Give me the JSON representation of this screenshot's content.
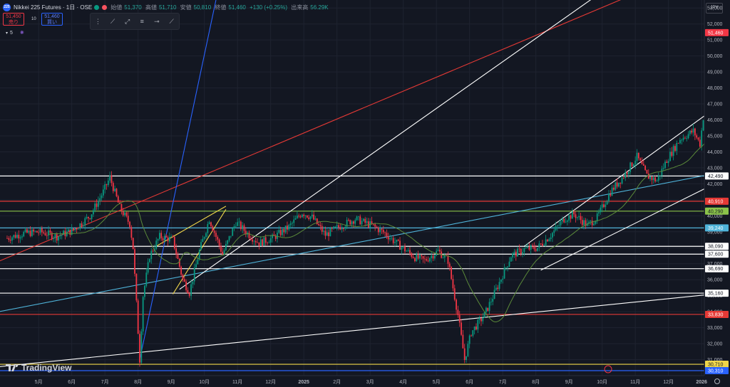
{
  "header": {
    "badge": "225",
    "symbol": "Nikkei 225 Futures · 1日 · OSE",
    "ohlc": [
      {
        "label": "始値",
        "value": "51,370"
      },
      {
        "label": "高値",
        "value": "51,710"
      },
      {
        "label": "安値",
        "value": "50,810"
      },
      {
        "label": "終値",
        "value": "51,460"
      }
    ],
    "change": "+130 (+0.25%)",
    "volume_label": "出来高",
    "volume_value": "56.29K"
  },
  "order_buttons": {
    "sell_price": "51,450",
    "sell_label": "売り",
    "spread": "10",
    "buy_price": "51,460",
    "buy_label": "買い"
  },
  "indicator_count": "5",
  "currency": "JPY",
  "brand": "TradingView",
  "colors": {
    "background": "#131722",
    "up": "#089981",
    "down": "#f23645",
    "ma": "#5b8a3a",
    "white_line": "#ffffff",
    "red_line": "#e53935",
    "blue_line": "#2962ff",
    "cyan_line": "#4fb3d9",
    "yellow_line": "#f0d64a",
    "green_level": "#8bc34a"
  },
  "chart_data": {
    "type": "candlestick",
    "title": "Nikkei 225 Futures · 1日 · OSE",
    "x_ticks": [
      "5月",
      "6月",
      "7月",
      "8月",
      "9月",
      "10月",
      "11月",
      "12月",
      "2025",
      "2月",
      "3月",
      "4月",
      "5月",
      "6月",
      "7月",
      "8月",
      "9月",
      "10月",
      "11月",
      "12月",
      "2026"
    ],
    "y_ticks": [
      31000,
      32000,
      33000,
      34000,
      35000,
      36000,
      37000,
      38000,
      39000,
      40000,
      41000,
      42000,
      43000,
      44000,
      45000,
      46000,
      47000,
      48000,
      49000,
      50000,
      51000,
      52000,
      53000
    ],
    "ylim": [
      30000,
      53500
    ],
    "last_price": 51460,
    "price_path": [
      [
        0,
        38600
      ],
      [
        0.5,
        38900
      ],
      [
        1,
        39000
      ],
      [
        1.5,
        38700
      ],
      [
        2,
        39100
      ],
      [
        2.5,
        40000
      ],
      [
        2.9,
        41500
      ],
      [
        3.1,
        42400
      ],
      [
        3.4,
        40500
      ],
      [
        3.7,
        39500
      ],
      [
        3.8,
        38000
      ],
      [
        4.0,
        31000
      ],
      [
        4.1,
        35000
      ],
      [
        4.3,
        37500
      ],
      [
        4.6,
        38700
      ],
      [
        5.0,
        38500
      ],
      [
        5.3,
        36000
      ],
      [
        5.5,
        35200
      ],
      [
        5.8,
        37800
      ],
      [
        6.1,
        39800
      ],
      [
        6.5,
        37600
      ],
      [
        6.9,
        39600
      ],
      [
        7.3,
        38800
      ],
      [
        7.6,
        38300
      ],
      [
        8.0,
        38600
      ],
      [
        8.5,
        39300
      ],
      [
        8.9,
        40200
      ],
      [
        9.2,
        39900
      ],
      [
        9.6,
        38800
      ],
      [
        10.0,
        39300
      ],
      [
        10.5,
        39800
      ],
      [
        11.0,
        39400
      ],
      [
        11.4,
        38900
      ],
      [
        11.8,
        38200
      ],
      [
        12.3,
        37400
      ],
      [
        12.6,
        37200
      ],
      [
        13.0,
        37800
      ],
      [
        13.3,
        37200
      ],
      [
        13.6,
        33800
      ],
      [
        13.8,
        31000
      ],
      [
        14.0,
        32700
      ],
      [
        14.4,
        33800
      ],
      [
        14.8,
        35600
      ],
      [
        15.2,
        37500
      ],
      [
        15.6,
        37900
      ],
      [
        16.0,
        38000
      ],
      [
        16.4,
        38800
      ],
      [
        16.8,
        39800
      ],
      [
        17.1,
        40100
      ],
      [
        17.5,
        39400
      ],
      [
        17.8,
        39900
      ],
      [
        18.2,
        41500
      ],
      [
        18.6,
        42500
      ],
      [
        19.0,
        43700
      ],
      [
        19.3,
        42500
      ],
      [
        19.6,
        42200
      ],
      [
        19.9,
        43500
      ],
      [
        20.3,
        44800
      ],
      [
        20.7,
        45300
      ],
      [
        20.9,
        44500
      ],
      [
        21.1,
        47800
      ],
      [
        21.4,
        46800
      ],
      [
        21.7,
        48600
      ],
      [
        21.9,
        49900
      ],
      [
        22.0,
        50500
      ],
      [
        22.1,
        51460
      ]
    ],
    "horizontal_levels": [
      {
        "price": 42490,
        "label": "42,490",
        "color": "#ffffff"
      },
      {
        "price": 40910,
        "label": "40,910",
        "color": "#e53935"
      },
      {
        "price": 40290,
        "label": "40,290",
        "color": "#8bc34a"
      },
      {
        "price": 39240,
        "label": "39,240",
        "color": "#4fb3d9"
      },
      {
        "price": 38090,
        "label": "38,090",
        "color": "#ffffff"
      },
      {
        "price": 37600,
        "label": "37,600",
        "color": "#ffffff"
      },
      {
        "price": 36690,
        "label": "36,690",
        "color": "#ffffff"
      },
      {
        "price": 35160,
        "label": "35,160",
        "color": "#ffffff"
      },
      {
        "price": 33830,
        "label": "33,830",
        "color": "#e53935"
      },
      {
        "price": 30710,
        "label": "30,710",
        "color": "#f0d64a"
      },
      {
        "price": 30310,
        "label": "30,310",
        "color": "#2962ff"
      }
    ],
    "trend_lines": [
      {
        "color": "#e53935",
        "from": [
          -1,
          36500
        ],
        "to": [
          22.5,
          57000
        ]
      },
      {
        "color": "#4fb3d9",
        "from": [
          -1,
          33700
        ],
        "to": [
          27,
          44900
        ]
      },
      {
        "color": "#2962ff",
        "from": [
          4.0,
          31000
        ],
        "to": [
          6.3,
          53500
        ]
      },
      {
        "color": "#ffffff",
        "from": [
          -1,
          30400
        ],
        "to": [
          27,
          36300
        ]
      },
      {
        "color": "#ffffff",
        "from": [
          5.2,
          35400
        ],
        "to": [
          17.8,
          53800
        ]
      },
      {
        "color": "#ffffff",
        "from": [
          15.6,
          38100
        ],
        "to": [
          23.0,
          49200
        ]
      },
      {
        "color": "#ffffff",
        "from": [
          16.1,
          36600
        ],
        "to": [
          22.7,
          43400
        ]
      },
      {
        "color": "#f0d64a",
        "from": [
          4.5,
          38100
        ],
        "to": [
          6.6,
          40600
        ]
      },
      {
        "color": "#f0d64a",
        "from": [
          5.0,
          35100
        ],
        "to": [
          6.6,
          40400
        ]
      }
    ]
  }
}
